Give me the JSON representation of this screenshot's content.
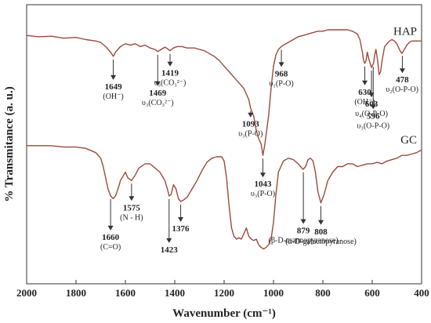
{
  "chart_data": {
    "type": "line",
    "xlabel": "Wavenumber (cm⁻¹)",
    "ylabel": "% Transmitance (a. u.)",
    "xlim": [
      2000,
      400
    ],
    "x_reversed": true,
    "x_ticks": [
      2000,
      1800,
      1600,
      1400,
      1200,
      1000,
      800,
      600,
      400
    ],
    "ylim": [
      0,
      100
    ],
    "y_ticks_shown": false,
    "grid": false,
    "line_color": "#9b4a3c",
    "series": [
      {
        "name": "HAP",
        "x": [
          2000,
          1950,
          1900,
          1850,
          1800,
          1760,
          1720,
          1700,
          1680,
          1660,
          1649,
          1640,
          1620,
          1600,
          1580,
          1560,
          1540,
          1520,
          1500,
          1480,
          1469,
          1455,
          1440,
          1430,
          1419,
          1405,
          1390,
          1370,
          1350,
          1320,
          1300,
          1280,
          1260,
          1240,
          1220,
          1200,
          1180,
          1160,
          1140,
          1120,
          1100,
          1093,
          1080,
          1070,
          1060,
          1050,
          1043,
          1035,
          1020,
          1010,
          1000,
          990,
          980,
          968,
          960,
          940,
          920,
          900,
          880,
          860,
          840,
          820,
          800,
          780,
          760,
          740,
          720,
          700,
          680,
          660,
          650,
          640,
          635,
          630,
          625,
          620,
          612,
          603,
          595,
          590,
          585,
          578,
          572,
          566,
          560,
          550,
          540,
          530,
          520,
          510,
          500,
          490,
          480,
          478,
          470,
          460,
          450,
          440,
          430,
          420,
          410,
          400
        ],
        "y": [
          89,
          88.5,
          88.7,
          88,
          88.3,
          87.5,
          87,
          86.5,
          85,
          83,
          81.5,
          83,
          85,
          86,
          85.5,
          86,
          85,
          85.5,
          84.5,
          84,
          83.2,
          84,
          84.8,
          84.2,
          83.5,
          84.5,
          85,
          85,
          84.5,
          84.5,
          84,
          83.5,
          82.5,
          81.5,
          80,
          78,
          76,
          74,
          72,
          70,
          66,
          63,
          60,
          55,
          52,
          50,
          46,
          50,
          60,
          70,
          78,
          82,
          84,
          85,
          85.5,
          86.5,
          87.5,
          88.5,
          89,
          89.5,
          90,
          90.5,
          90.5,
          91,
          91,
          91,
          91,
          91,
          90.5,
          89.5,
          87.5,
          83,
          80,
          79,
          80,
          83,
          80,
          77.5,
          79,
          82,
          84,
          80,
          75,
          76,
          80,
          85,
          86,
          87,
          87.5,
          87,
          86,
          84,
          82.5,
          82.8,
          84,
          85.5,
          86.5,
          87,
          87,
          87,
          87,
          87
        ]
      },
      {
        "name": "GC",
        "x": [
          2000,
          1950,
          1900,
          1850,
          1800,
          1760,
          1720,
          1700,
          1690,
          1680,
          1670,
          1660,
          1650,
          1640,
          1630,
          1620,
          1600,
          1590,
          1575,
          1560,
          1545,
          1520,
          1500,
          1480,
          1460,
          1440,
          1430,
          1423,
          1415,
          1405,
          1395,
          1385,
          1376,
          1365,
          1350,
          1330,
          1310,
          1290,
          1270,
          1250,
          1230,
          1210,
          1200,
          1190,
          1180,
          1170,
          1160,
          1150,
          1140,
          1130,
          1120,
          1110,
          1100,
          1090,
          1080,
          1070,
          1060,
          1050,
          1040,
          1030,
          1020,
          1010,
          1000,
          990,
          980,
          960,
          940,
          920,
          900,
          880,
          870,
          860,
          850,
          840,
          830,
          820,
          808,
          795,
          780,
          760,
          740,
          720,
          700,
          680,
          660,
          640,
          620,
          600,
          580,
          560,
          540,
          520,
          500,
          480,
          460,
          440,
          420,
          400
        ],
        "y": [
          49.5,
          49.5,
          49.5,
          49,
          49,
          48.5,
          47,
          45,
          42,
          38,
          34,
          31.5,
          30.5,
          31.5,
          34,
          37,
          40,
          38,
          37,
          39,
          41.5,
          43,
          43,
          41.5,
          40,
          37,
          34,
          31.5,
          32,
          35.5,
          34,
          30.5,
          29.5,
          30,
          31,
          34,
          37,
          40.5,
          43.5,
          45,
          45.5,
          45.5,
          44,
          38,
          28,
          20,
          17,
          16,
          16.5,
          16,
          18,
          20,
          17,
          16,
          15.5,
          16,
          14,
          13,
          12.5,
          13,
          14,
          16,
          22,
          32,
          40,
          44,
          45,
          44.5,
          43,
          41,
          42,
          44.5,
          45,
          44,
          40,
          33,
          29,
          32,
          37,
          40,
          42,
          42,
          43,
          43,
          42,
          42.5,
          43,
          43,
          43.5,
          43,
          44,
          44.5,
          45,
          46,
          46,
          46.5,
          47,
          48
        ]
      }
    ],
    "annotations": [
      {
        "series": "HAP",
        "x": 1649,
        "num": "1649",
        "label": "(OH⁻)"
      },
      {
        "series": "HAP",
        "x": 1469,
        "num": "1469",
        "label": "υ₃(CO₃²⁻)"
      },
      {
        "series": "HAP",
        "x": 1419,
        "num": "1419",
        "label": "υ₃(CO₃²⁻)"
      },
      {
        "series": "HAP",
        "x": 1093,
        "num": "1093",
        "label": "υ₃(P-O)"
      },
      {
        "series": "HAP",
        "x": 1043,
        "num": "1043",
        "label": "υ₃(P-O)"
      },
      {
        "series": "HAP",
        "x": 968,
        "num": "968",
        "label": "υ₁(P-O)"
      },
      {
        "series": "HAP",
        "x": 630,
        "num": "630",
        "label": "(OH⁻)"
      },
      {
        "series": "HAP",
        "x": 603,
        "num": "603",
        "label": "υ₄(O-P-O)"
      },
      {
        "series": "HAP",
        "x": 596,
        "num": "596",
        "label": "υ₃(O-P-O)"
      },
      {
        "series": "HAP",
        "x": 478,
        "num": "478",
        "label": "υ₂(O-P-O)"
      },
      {
        "series": "GC",
        "x": 1660,
        "num": "1660",
        "label": "(C=O)"
      },
      {
        "series": "GC",
        "x": 1575,
        "num": "1575",
        "label": "(N - H)"
      },
      {
        "series": "GC",
        "x": 1423,
        "num": "1423",
        "label": ""
      },
      {
        "series": "GC",
        "x": 1376,
        "num": "1376",
        "label": ""
      },
      {
        "series": "GC",
        "x": 879,
        "num": "879",
        "label": "(β-D-mannopyranose)"
      },
      {
        "series": "GC",
        "x": 808,
        "num": "808",
        "label": "(α-D-galactopyranose)"
      }
    ]
  }
}
